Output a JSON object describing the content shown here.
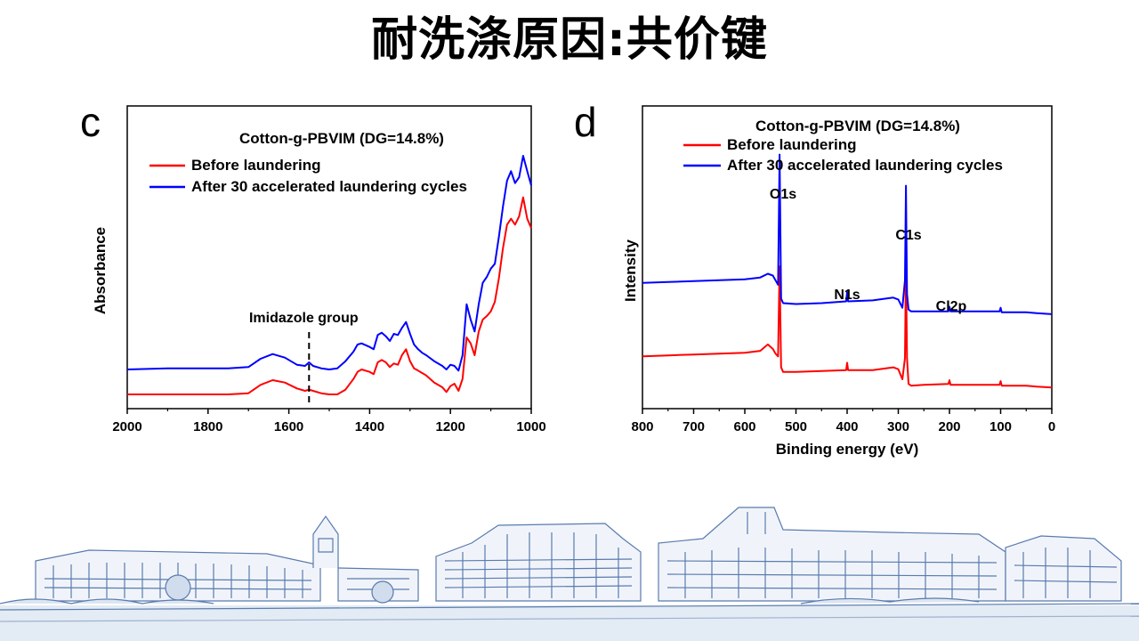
{
  "slide_title": "耐洗涤原因:共价键",
  "chart_data": [
    {
      "panel": "c",
      "type": "line",
      "title": "Cotton-g-PBVIM (DG=14.8%)",
      "xlabel": "",
      "ylabel": "Absorbance",
      "xlim": [
        2000,
        1000
      ],
      "x_reversed": true,
      "xticks": [
        2000,
        1800,
        1600,
        1400,
        1200,
        1000
      ],
      "y_ticks_shown": false,
      "legend_position": "top-left",
      "annotation": {
        "text": "Imidazole group",
        "x": 1550
      },
      "series": [
        {
          "name": "Before laundering",
          "color": "#ff0000",
          "x": [
            2000,
            1900,
            1800,
            1750,
            1700,
            1670,
            1640,
            1610,
            1580,
            1560,
            1550,
            1540,
            1520,
            1500,
            1480,
            1460,
            1440,
            1430,
            1420,
            1400,
            1390,
            1380,
            1370,
            1360,
            1350,
            1340,
            1330,
            1320,
            1310,
            1300,
            1290,
            1280,
            1270,
            1260,
            1240,
            1220,
            1210,
            1200,
            1190,
            1180,
            1170,
            1160,
            1150,
            1140,
            1130,
            1120,
            1110,
            1100,
            1090,
            1080,
            1070,
            1060,
            1050,
            1040,
            1030,
            1020,
            1010,
            1000
          ],
          "y": [
            0.02,
            0.02,
            0.02,
            0.02,
            0.03,
            0.1,
            0.14,
            0.12,
            0.07,
            0.05,
            0.06,
            0.05,
            0.03,
            0.02,
            0.02,
            0.06,
            0.15,
            0.21,
            0.23,
            0.21,
            0.19,
            0.29,
            0.31,
            0.29,
            0.25,
            0.28,
            0.27,
            0.35,
            0.4,
            0.3,
            0.24,
            0.22,
            0.2,
            0.18,
            0.12,
            0.08,
            0.04,
            0.09,
            0.11,
            0.05,
            0.15,
            0.5,
            0.45,
            0.35,
            0.55,
            0.65,
            0.68,
            0.72,
            0.8,
            1.0,
            1.25,
            1.45,
            1.5,
            1.45,
            1.52,
            1.68,
            1.5,
            1.42
          ]
        },
        {
          "name": "After 30 accelerated laundering cycles",
          "color": "#0000ff",
          "x": [
            2000,
            1900,
            1800,
            1750,
            1700,
            1670,
            1640,
            1610,
            1580,
            1560,
            1550,
            1540,
            1520,
            1500,
            1480,
            1460,
            1440,
            1430,
            1420,
            1400,
            1390,
            1380,
            1370,
            1360,
            1350,
            1340,
            1330,
            1320,
            1310,
            1300,
            1290,
            1280,
            1270,
            1260,
            1240,
            1220,
            1210,
            1200,
            1190,
            1180,
            1170,
            1160,
            1150,
            1140,
            1130,
            1120,
            1110,
            1100,
            1090,
            1080,
            1070,
            1060,
            1050,
            1040,
            1030,
            1020,
            1010,
            1000
          ],
          "y": [
            0.23,
            0.24,
            0.24,
            0.24,
            0.25,
            0.32,
            0.36,
            0.33,
            0.27,
            0.26,
            0.29,
            0.26,
            0.24,
            0.23,
            0.24,
            0.3,
            0.38,
            0.44,
            0.45,
            0.42,
            0.4,
            0.52,
            0.54,
            0.51,
            0.47,
            0.53,
            0.52,
            0.58,
            0.63,
            0.53,
            0.44,
            0.4,
            0.37,
            0.35,
            0.3,
            0.26,
            0.23,
            0.27,
            0.26,
            0.22,
            0.35,
            0.78,
            0.65,
            0.55,
            0.78,
            0.96,
            1.01,
            1.08,
            1.12,
            1.35,
            1.6,
            1.82,
            1.9,
            1.8,
            1.85,
            2.03,
            1.9,
            1.78
          ]
        }
      ]
    },
    {
      "panel": "d",
      "type": "line",
      "title": "Cotton-g-PBVIM (DG=14.8%)",
      "xlabel": "Binding energy (eV)",
      "ylabel": "Intensity",
      "xlim": [
        800,
        0
      ],
      "x_reversed": true,
      "xticks": [
        800,
        700,
        600,
        500,
        400,
        300,
        200,
        100,
        0
      ],
      "y_ticks_shown": false,
      "legend_position": "top-left",
      "peak_labels": [
        {
          "text": "O1s",
          "x": 532
        },
        {
          "text": "N1s",
          "x": 400
        },
        {
          "text": "C1s",
          "x": 285
        },
        {
          "text": "Cl2p",
          "x": 200
        }
      ],
      "series": [
        {
          "name": "Before laundering",
          "color": "#ff0000",
          "x": [
            800,
            750,
            700,
            650,
            600,
            570,
            555,
            545,
            540,
            535,
            532,
            529,
            525,
            500,
            450,
            402,
            400,
            398,
            350,
            310,
            300,
            292,
            287,
            285,
            283,
            280,
            275,
            250,
            202,
            200,
            198,
            150,
            102,
            100,
            98,
            50,
            30,
            0
          ],
          "y": [
            0.42,
            0.43,
            0.44,
            0.45,
            0.46,
            0.48,
            0.55,
            0.5,
            0.45,
            0.42,
            1.4,
            0.3,
            0.25,
            0.25,
            0.26,
            0.27,
            0.35,
            0.27,
            0.27,
            0.3,
            0.28,
            0.17,
            0.4,
            1.4,
            0.4,
            0.12,
            0.1,
            0.11,
            0.12,
            0.16,
            0.11,
            0.11,
            0.11,
            0.15,
            0.1,
            0.1,
            0.09,
            0.08
          ]
        },
        {
          "name": "After 30 accelerated laundering cycles",
          "color": "#0000ff",
          "x": [
            800,
            750,
            700,
            650,
            600,
            570,
            555,
            545,
            540,
            535,
            532,
            529,
            525,
            500,
            450,
            402,
            400,
            398,
            350,
            310,
            300,
            292,
            287,
            285,
            283,
            280,
            275,
            250,
            202,
            200,
            198,
            150,
            102,
            100,
            98,
            50,
            30,
            0
          ],
          "y": [
            1.22,
            1.23,
            1.24,
            1.25,
            1.26,
            1.28,
            1.32,
            1.3,
            1.25,
            1.2,
            2.62,
            1.05,
            1.0,
            0.99,
            1.0,
            1.02,
            1.12,
            1.02,
            1.03,
            1.06,
            1.04,
            0.95,
            1.25,
            2.28,
            1.1,
            0.93,
            0.91,
            0.91,
            0.91,
            0.96,
            0.91,
            0.91,
            0.91,
            0.95,
            0.9,
            0.9,
            0.89,
            0.88
          ]
        }
      ]
    }
  ]
}
